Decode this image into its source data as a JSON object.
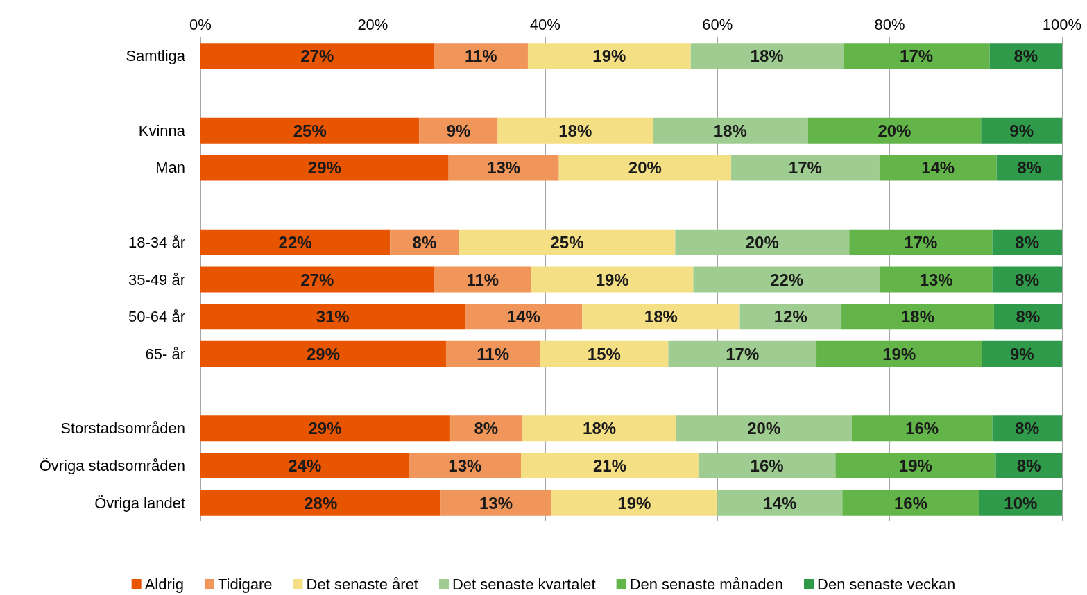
{
  "chart_data": {
    "type": "bar",
    "orientation": "horizontal",
    "stacked": true,
    "grid": "x",
    "legend": "bottom",
    "categories": [
      "Samtliga",
      null,
      "Kvinna",
      "Man",
      null,
      "18-34 år",
      "35-49 år",
      "50-64 år",
      "65- år",
      null,
      "Storstadsområden",
      "Övriga stadsområden",
      "Övriga landet"
    ],
    "xlim": [
      0,
      100
    ],
    "xticks": [
      {
        "value": 0,
        "label": "0%"
      },
      {
        "value": 20,
        "label": "20%"
      },
      {
        "value": 40,
        "label": "40%"
      },
      {
        "value": 60,
        "label": "60%"
      },
      {
        "value": 80,
        "label": "80%"
      },
      {
        "value": 100,
        "label": "100%"
      }
    ],
    "series": [
      {
        "name": "Aldrig",
        "color": "#e85500",
        "values": [
          27.1,
          null,
          25.4,
          28.8,
          null,
          22.0,
          27.1,
          30.7,
          28.5,
          null,
          28.9,
          24.2,
          27.9
        ],
        "value_labels": [
          "27%",
          null,
          "25%",
          "29%",
          null,
          "22%",
          "27%",
          "31%",
          "29%",
          null,
          "29%",
          "24%",
          "28%"
        ]
      },
      {
        "name": "Tidigare",
        "color": "#f0965a",
        "values": [
          10.9,
          null,
          9.1,
          12.8,
          null,
          8.0,
          11.3,
          13.6,
          10.9,
          null,
          8.5,
          13.0,
          12.8
        ],
        "value_labels": [
          "11%",
          null,
          "9%",
          "13%",
          null,
          "8%",
          "11%",
          "14%",
          "11%",
          null,
          "8%",
          "13%",
          "13%"
        ]
      },
      {
        "name": "Det senaste året",
        "color": "#f5df85",
        "values": [
          18.9,
          null,
          18.0,
          20.0,
          null,
          25.1,
          18.8,
          18.3,
          14.9,
          null,
          17.8,
          20.6,
          19.3
        ],
        "value_labels": [
          "19%",
          null,
          "18%",
          "20%",
          null,
          "25%",
          "19%",
          "18%",
          "15%",
          null,
          "18%",
          "21%",
          "19%"
        ]
      },
      {
        "name": "Det senaste kvartalet",
        "color": "#9fcd91",
        "values": [
          17.7,
          null,
          18.0,
          17.2,
          null,
          20.2,
          21.7,
          11.8,
          17.2,
          null,
          20.4,
          15.9,
          14.5
        ],
        "value_labels": [
          "18%",
          null,
          "18%",
          "17%",
          null,
          "20%",
          "22%",
          "12%",
          "17%",
          null,
          "20%",
          "16%",
          "14%"
        ]
      },
      {
        "name": "Den senaste månaden",
        "color": "#63b54a",
        "values": [
          17.0,
          null,
          20.1,
          13.6,
          null,
          16.6,
          13.0,
          17.7,
          19.2,
          null,
          16.3,
          18.6,
          15.9
        ],
        "value_labels": [
          "17%",
          null,
          "20%",
          "14%",
          null,
          "17%",
          "13%",
          "18%",
          "19%",
          null,
          "16%",
          "19%",
          "16%"
        ]
      },
      {
        "name": "Den senaste veckan",
        "color": "#2e9a4a",
        "values": [
          8.4,
          null,
          9.4,
          7.6,
          null,
          8.1,
          8.1,
          7.9,
          9.3,
          null,
          8.1,
          7.7,
          9.6
        ],
        "value_labels": [
          "8%",
          null,
          "9%",
          "8%",
          null,
          "8%",
          "8%",
          "8%",
          "9%",
          null,
          "8%",
          "8%",
          "10%"
        ]
      }
    ]
  }
}
